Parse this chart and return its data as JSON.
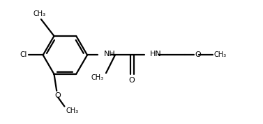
{
  "bg_color": "#ffffff",
  "line_color": "#000000",
  "line_width": 1.6,
  "fig_width": 3.77,
  "fig_height": 1.79,
  "dpi": 100,
  "cl_label": "Cl",
  "o_label": "O",
  "nh_label": "NH",
  "hn_label": "HN",
  "me_label": "CH₃",
  "o2_label": "O",
  "me2_label": "CH₃",
  "carbonyl_o_label": "O"
}
